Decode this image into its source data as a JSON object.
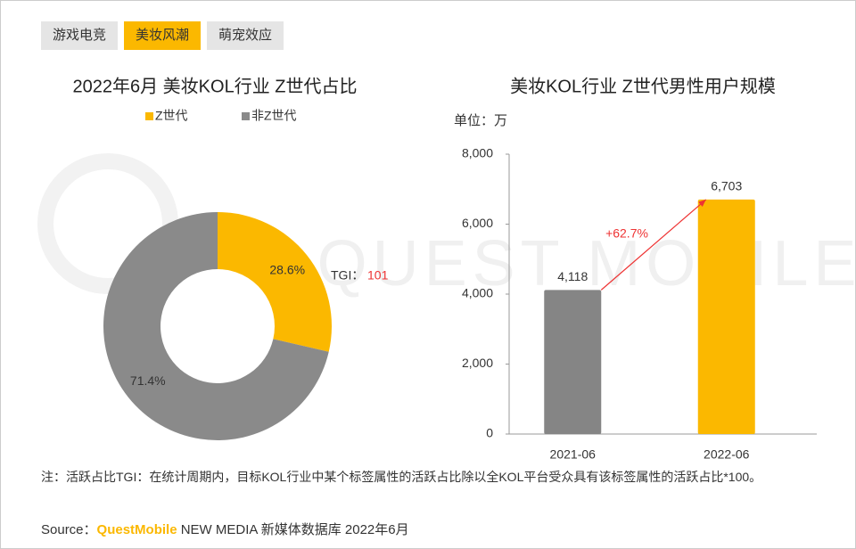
{
  "tabs": [
    "游戏电竞",
    "美妆风潮",
    "萌宠效应"
  ],
  "active_tab": 1,
  "watermark": "QUEST MOBILE",
  "chart_data": [
    {
      "type": "donut",
      "title": "2022年6月 美妆KOL行业 Z世代占比",
      "categories": [
        "Z世代",
        "非Z世代"
      ],
      "values": [
        28.6,
        71.4
      ],
      "value_labels": [
        "28.6%",
        "71.4%"
      ],
      "colors": [
        "#fbb800",
        "#8a8a8a"
      ],
      "tgi": {
        "label": "TGI：",
        "value": "101"
      }
    },
    {
      "type": "bar",
      "title": "美妆KOL行业 Z世代男性用户规模",
      "unit_label": "单位：万",
      "categories": [
        "2021-06",
        "2022-06"
      ],
      "values": [
        4118,
        6703
      ],
      "value_labels": [
        "4,118",
        "6,703"
      ],
      "colors": [
        "#858585",
        "#fbb800"
      ],
      "ylim": [
        0,
        8000
      ],
      "yticks": [
        0,
        {
          "value": 2000,
          "label": "2,000"
        },
        {
          "value": 4000,
          "label": "4,000"
        },
        {
          "value": 6000,
          "label": "6,000"
        },
        {
          "value": 8000,
          "label": "8,000"
        }
      ],
      "growth_label": "+62.7%"
    }
  ],
  "note": "注：活跃占比TGI：在统计周期内，目标KOL行业中某个标签属性的活跃占比除以全KOL平台受众具有该标签属性的活跃占比*100。",
  "source": {
    "label": "Source：",
    "brand": "QuestMobile",
    "text": "NEW MEDIA 新媒体数据库 2022年6月"
  }
}
